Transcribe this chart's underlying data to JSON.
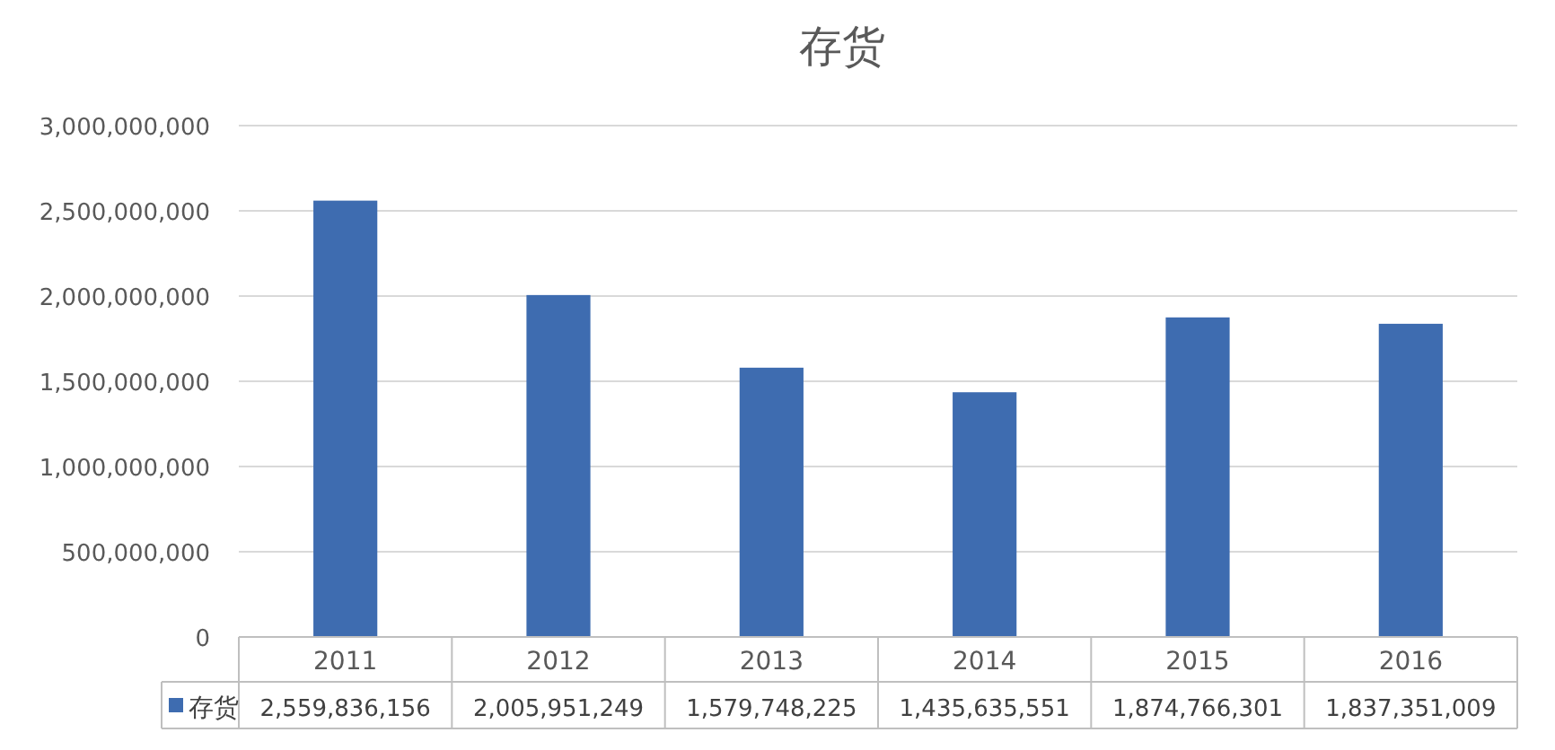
{
  "chart_data": {
    "type": "bar",
    "title": "存货",
    "categories": [
      "2011",
      "2012",
      "2013",
      "2014",
      "2015",
      "2016"
    ],
    "series": [
      {
        "name": "存货",
        "color": "#3e6cb0",
        "values": [
          2559836156,
          2005951249,
          1579748225,
          1435635551,
          1874766301,
          1837351009
        ],
        "value_labels": [
          "2,559,836,156",
          "2,005,951,249",
          "1,579,748,225",
          "1,435,635,551",
          "1,874,766,301",
          "1,837,351,009"
        ]
      }
    ],
    "ylim": [
      0,
      3000000000
    ],
    "yticks": [
      0,
      {
        "value": 500000000,
        "label": "500,000,000"
      },
      {
        "value": 1000000000,
        "label": "1,000,000,000"
      },
      {
        "value": 1500000000,
        "label": "1,500,000,000"
      },
      {
        "value": 2000000000,
        "label": "2,000,000,000"
      },
      {
        "value": 2500000000,
        "label": "2,500,000,000"
      },
      {
        "value": 3000000000,
        "label": "3,000,000,000"
      }
    ],
    "grid": "y"
  }
}
